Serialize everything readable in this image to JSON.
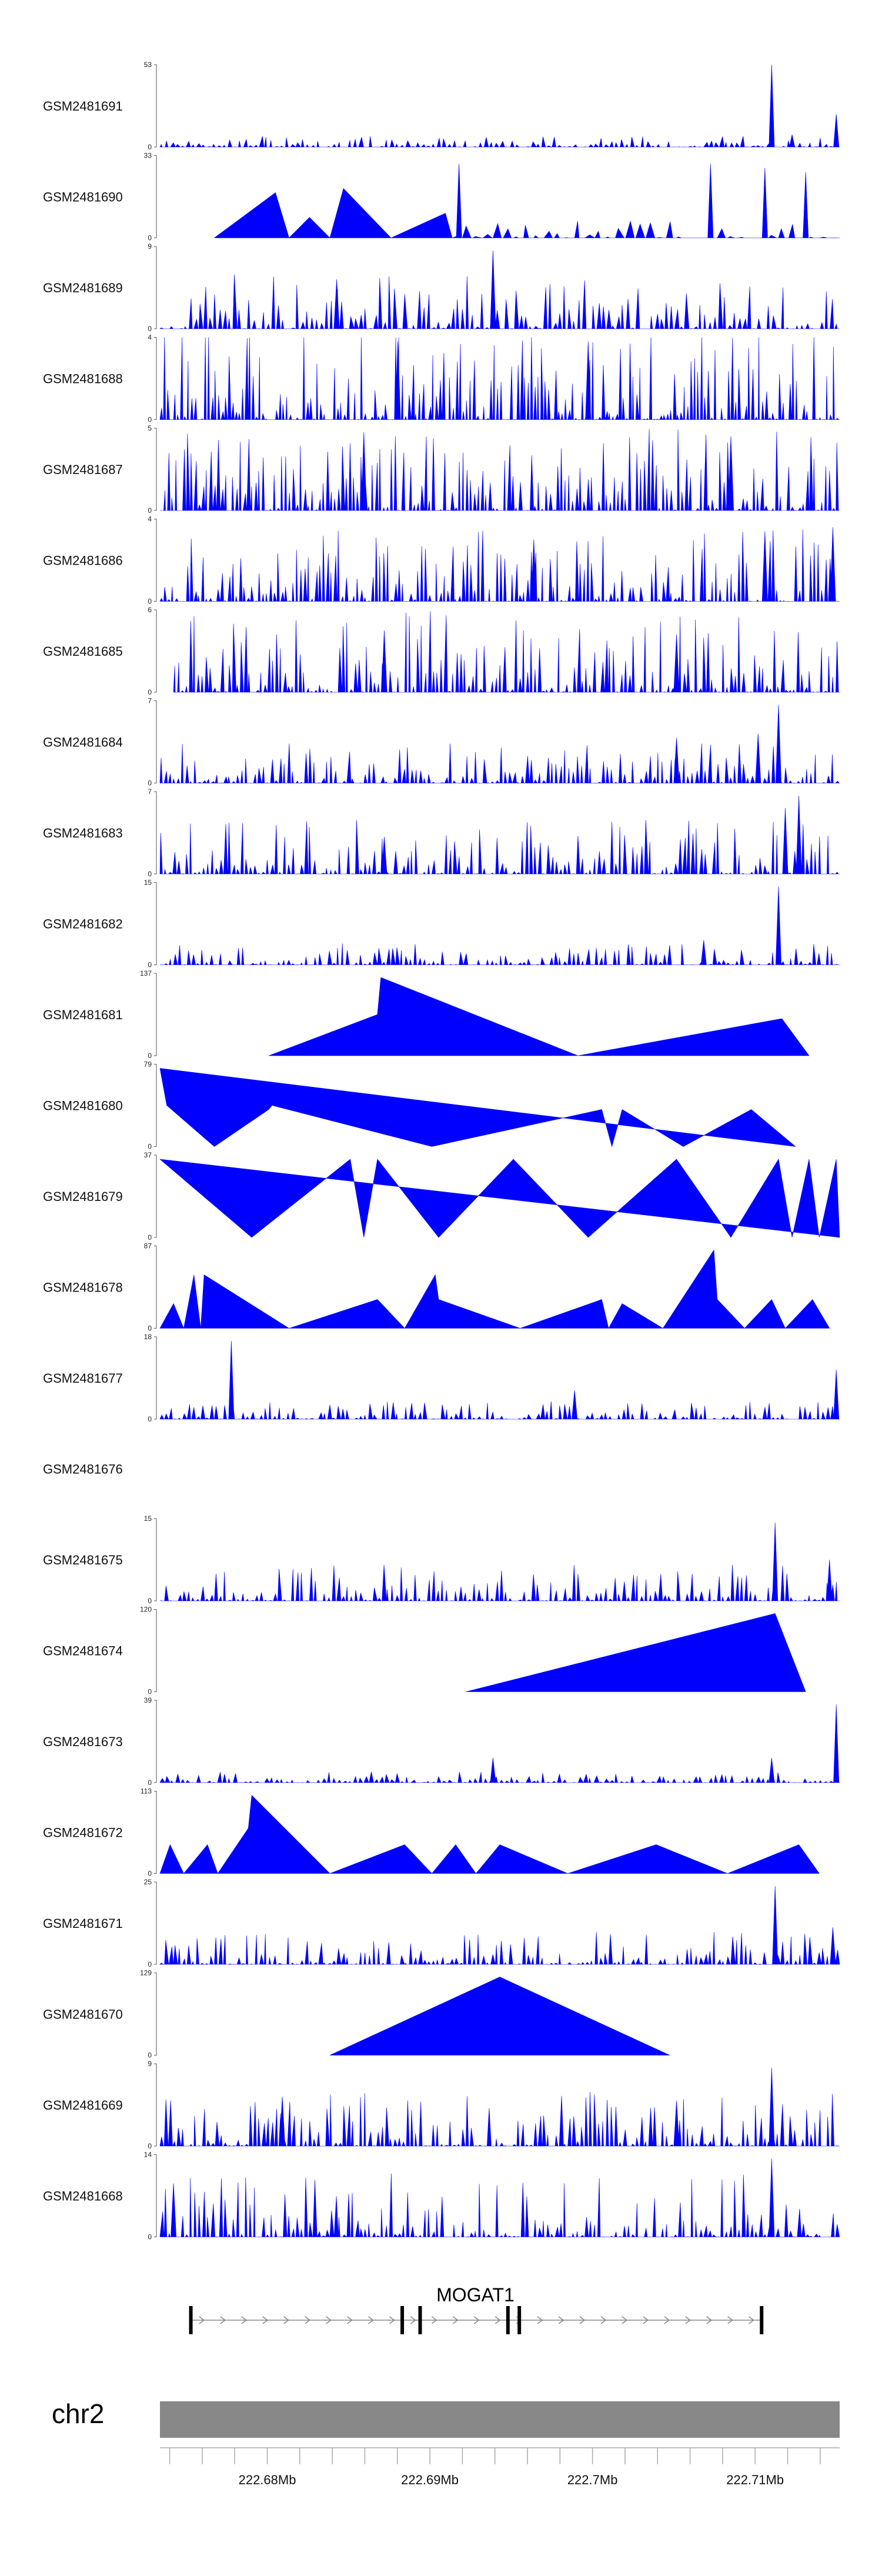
{
  "chart_data": {
    "type": "area",
    "chromosome": "chr2",
    "x_range_mb": [
      222.6734,
      222.7152
    ],
    "fill_color": "#0000ff",
    "ideogram_color": "#888888",
    "x_ticks_mb": [
      222.674,
      222.676,
      222.678,
      222.68,
      222.682,
      222.684,
      222.686,
      222.688,
      222.69,
      222.692,
      222.694,
      222.696,
      222.698,
      222.7,
      222.702,
      222.704,
      222.706,
      222.708,
      222.71,
      222.712,
      222.714
    ],
    "x_tick_labels": [
      {
        "mb": 222.68,
        "text": "222.68Mb"
      },
      {
        "mb": 222.69,
        "text": "222.69Mb"
      },
      {
        "mb": 222.7,
        "text": "222.7Mb"
      },
      {
        "mb": 222.71,
        "text": "222.71Mb"
      }
    ],
    "gene": {
      "name": "MOGAT1",
      "start_mb": 222.6752,
      "end_mb": 222.7104,
      "strand": "+",
      "exons_mb": [
        222.6753,
        222.6883,
        222.6894,
        222.6948,
        222.6955,
        222.7104
      ]
    },
    "tracks": [
      {
        "name": "GSM2481691",
        "ymin": 0,
        "ymax": 53,
        "pattern": "spiky",
        "density": 130,
        "base": 0.06,
        "peaks": [
          {
            "x": 0.9,
            "h": 1.0
          },
          {
            "x": 0.995,
            "h": 0.4
          },
          {
            "x": 0.93,
            "h": 0.15
          }
        ]
      },
      {
        "name": "GSM2481690",
        "ymin": 0,
        "ymax": 33,
        "pattern": "mix",
        "segments": [
          [
            0.08,
            0.0
          ],
          [
            0.17,
            0.55
          ],
          [
            0.19,
            0.0
          ],
          [
            0.22,
            0.25
          ],
          [
            0.25,
            0.0
          ],
          [
            0.27,
            0.6
          ],
          [
            0.34,
            0.0
          ],
          [
            0.42,
            0.3
          ],
          [
            0.43,
            0.0
          ]
        ],
        "density": 38,
        "spike_start": 0.43,
        "base": 0.1,
        "peaks": [
          {
            "x": 0.44,
            "h": 0.9
          },
          {
            "x": 0.81,
            "h": 0.9
          },
          {
            "x": 0.89,
            "h": 0.85
          },
          {
            "x": 0.95,
            "h": 0.8
          }
        ]
      },
      {
        "name": "GSM2481689",
        "ymin": 0,
        "ymax": 9,
        "pattern": "spiky",
        "density": 140,
        "base": 0.3,
        "peaks": [
          {
            "x": 0.49,
            "h": 0.95
          },
          {
            "x": 0.26,
            "h": 0.6
          }
        ]
      },
      {
        "name": "GSM2481688",
        "ymin": 0,
        "ymax": 4,
        "pattern": "spiky",
        "density": 200,
        "base": 0.55,
        "peaks": [
          {
            "x": 0.35,
            "h": 0.95
          },
          {
            "x": 0.63,
            "h": 0.95
          }
        ]
      },
      {
        "name": "GSM2481687",
        "ymin": 0,
        "ymax": 5,
        "pattern": "spiky",
        "density": 180,
        "base": 0.45,
        "peaks": [
          {
            "x": 0.3,
            "h": 0.95
          },
          {
            "x": 0.84,
            "h": 0.9
          }
        ]
      },
      {
        "name": "GSM2481686",
        "ymin": 0,
        "ymax": 4,
        "pattern": "spiky",
        "density": 180,
        "base": 0.4,
        "peaks": [
          {
            "x": 0.55,
            "h": 0.75
          },
          {
            "x": 0.89,
            "h": 0.85
          },
          {
            "x": 0.99,
            "h": 0.9
          }
        ]
      },
      {
        "name": "GSM2481685",
        "ymin": 0,
        "ymax": 6,
        "pattern": "spiky",
        "density": 170,
        "base": 0.45,
        "start": 0.02,
        "peaks": [
          {
            "x": 0.33,
            "h": 0.75
          },
          {
            "x": 0.76,
            "h": 0.7
          }
        ]
      },
      {
        "name": "GSM2481684",
        "ymin": 0,
        "ymax": 7,
        "pattern": "spiky",
        "density": 160,
        "base": 0.22,
        "peaks": [
          {
            "x": 0.91,
            "h": 0.95
          },
          {
            "x": 0.76,
            "h": 0.55
          },
          {
            "x": 0.88,
            "h": 0.6
          }
        ]
      },
      {
        "name": "GSM2481683",
        "ymin": 0,
        "ymax": 7,
        "pattern": "spiky",
        "density": 160,
        "base": 0.3,
        "peaks": [
          {
            "x": 0.94,
            "h": 0.95
          },
          {
            "x": 0.92,
            "h": 0.8
          },
          {
            "x": 0.33,
            "h": 0.45
          }
        ]
      },
      {
        "name": "GSM2481682",
        "ymin": 0,
        "ymax": 15,
        "pattern": "spiky",
        "density": 150,
        "base": 0.12,
        "peaks": [
          {
            "x": 0.91,
            "h": 0.95
          },
          {
            "x": 0.8,
            "h": 0.3
          }
        ]
      },
      {
        "name": "GSM2481681",
        "ymin": 0,
        "ymax": 137,
        "pattern": "triangle",
        "segments": [
          [
            0.16,
            0.0
          ],
          [
            0.32,
            0.5
          ],
          [
            0.325,
            0.95
          ],
          [
            0.615,
            0.0
          ],
          [
            0.915,
            0.45
          ],
          [
            0.955,
            0.0
          ]
        ]
      },
      {
        "name": "GSM2481680",
        "ymin": 0,
        "ymax": 79,
        "pattern": "triangle",
        "segments": [
          [
            0.0,
            0.95
          ],
          [
            0.01,
            0.5
          ],
          [
            0.08,
            0.0
          ],
          [
            0.16,
            0.45
          ],
          [
            0.165,
            0.5
          ],
          [
            0.4,
            0.0
          ],
          [
            0.65,
            0.45
          ],
          [
            0.665,
            0.0
          ],
          [
            0.68,
            0.45
          ],
          [
            0.77,
            0.0
          ],
          [
            0.87,
            0.45
          ],
          [
            0.935,
            0.0
          ]
        ]
      },
      {
        "name": "GSM2481679",
        "ymin": 0,
        "ymax": 37,
        "pattern": "triangle",
        "segments": [
          [
            0.0,
            0.95
          ],
          [
            0.135,
            0.0
          ],
          [
            0.28,
            0.95
          ],
          [
            0.3,
            0.0
          ],
          [
            0.32,
            0.95
          ],
          [
            0.41,
            0.0
          ],
          [
            0.52,
            0.95
          ],
          [
            0.63,
            0.0
          ],
          [
            0.76,
            0.95
          ],
          [
            0.84,
            0.0
          ],
          [
            0.91,
            0.95
          ],
          [
            0.93,
            0.0
          ],
          [
            0.955,
            0.95
          ],
          [
            0.97,
            0.0
          ],
          [
            0.995,
            0.95
          ],
          [
            1.0,
            0.0
          ]
        ]
      },
      {
        "name": "GSM2481678",
        "ymin": 0,
        "ymax": 87,
        "pattern": "triangle",
        "segments": [
          [
            0.0,
            0.0
          ],
          [
            0.02,
            0.3
          ],
          [
            0.035,
            0.0
          ],
          [
            0.05,
            0.65
          ],
          [
            0.06,
            0.0
          ],
          [
            0.065,
            0.65
          ],
          [
            0.19,
            0.0
          ],
          [
            0.32,
            0.35
          ],
          [
            0.36,
            0.0
          ],
          [
            0.405,
            0.65
          ],
          [
            0.41,
            0.35
          ],
          [
            0.53,
            0.0
          ],
          [
            0.65,
            0.35
          ],
          [
            0.66,
            0.0
          ],
          [
            0.68,
            0.3
          ],
          [
            0.74,
            0.0
          ],
          [
            0.815,
            0.95
          ],
          [
            0.82,
            0.35
          ],
          [
            0.86,
            0.0
          ],
          [
            0.9,
            0.35
          ],
          [
            0.92,
            0.0
          ],
          [
            0.96,
            0.35
          ],
          [
            0.985,
            0.0
          ]
        ]
      },
      {
        "name": "GSM2481677",
        "ymin": 0,
        "ymax": 18,
        "pattern": "spiky",
        "density": 150,
        "base": 0.1,
        "peaks": [
          {
            "x": 0.105,
            "h": 0.95
          },
          {
            "x": 0.995,
            "h": 0.6
          },
          {
            "x": 0.61,
            "h": 0.35
          }
        ]
      },
      {
        "name": "GSM2481676",
        "ymin": null,
        "ymax": null,
        "pattern": "empty"
      },
      {
        "name": "GSM2481675",
        "ymin": 0,
        "ymax": 15,
        "pattern": "spiky",
        "density": 150,
        "base": 0.2,
        "peaks": [
          {
            "x": 0.905,
            "h": 0.95
          },
          {
            "x": 0.985,
            "h": 0.5
          }
        ]
      },
      {
        "name": "GSM2481674",
        "ymin": 0,
        "ymax": 120,
        "pattern": "triangle",
        "segments": [
          [
            0.45,
            0.0
          ],
          [
            0.905,
            0.95
          ],
          [
            0.95,
            0.0
          ]
        ]
      },
      {
        "name": "GSM2481673",
        "ymin": 0,
        "ymax": 39,
        "pattern": "spiky",
        "density": 130,
        "base": 0.06,
        "peaks": [
          {
            "x": 0.995,
            "h": 0.95
          },
          {
            "x": 0.49,
            "h": 0.3
          },
          {
            "x": 0.9,
            "h": 0.3
          }
        ]
      },
      {
        "name": "GSM2481672",
        "ymin": 0,
        "ymax": 113,
        "pattern": "triangle",
        "segments": [
          [
            0.0,
            0.0
          ],
          [
            0.015,
            0.35
          ],
          [
            0.035,
            0.0
          ],
          [
            0.07,
            0.35
          ],
          [
            0.085,
            0.0
          ],
          [
            0.13,
            0.55
          ],
          [
            0.135,
            0.95
          ],
          [
            0.25,
            0.0
          ],
          [
            0.36,
            0.35
          ],
          [
            0.4,
            0.0
          ],
          [
            0.435,
            0.35
          ],
          [
            0.465,
            0.0
          ],
          [
            0.5,
            0.35
          ],
          [
            0.6,
            0.0
          ],
          [
            0.73,
            0.35
          ],
          [
            0.835,
            0.0
          ],
          [
            0.94,
            0.35
          ],
          [
            0.97,
            0.0
          ]
        ]
      },
      {
        "name": "GSM2481671",
        "ymin": 0,
        "ymax": 25,
        "pattern": "spiky",
        "density": 150,
        "base": 0.18,
        "peaks": [
          {
            "x": 0.905,
            "h": 0.95
          },
          {
            "x": 0.99,
            "h": 0.45
          }
        ]
      },
      {
        "name": "GSM2481670",
        "ymin": 0,
        "ymax": 129,
        "pattern": "triangle",
        "segments": [
          [
            0.25,
            0.0
          ],
          [
            0.5,
            0.95
          ],
          [
            0.75,
            0.0
          ]
        ]
      },
      {
        "name": "GSM2481669",
        "ymin": 0,
        "ymax": 9,
        "pattern": "spiky",
        "density": 160,
        "base": 0.3,
        "peaks": [
          {
            "x": 0.18,
            "h": 0.6
          },
          {
            "x": 0.9,
            "h": 0.95
          },
          {
            "x": 0.76,
            "h": 0.55
          }
        ]
      },
      {
        "name": "GSM2481668",
        "ymin": 0,
        "ymax": 14,
        "pattern": "spiky",
        "density": 160,
        "base": 0.35,
        "peaks": [
          {
            "x": 0.9,
            "h": 0.95
          },
          {
            "x": 0.02,
            "h": 0.65
          }
        ]
      }
    ]
  }
}
